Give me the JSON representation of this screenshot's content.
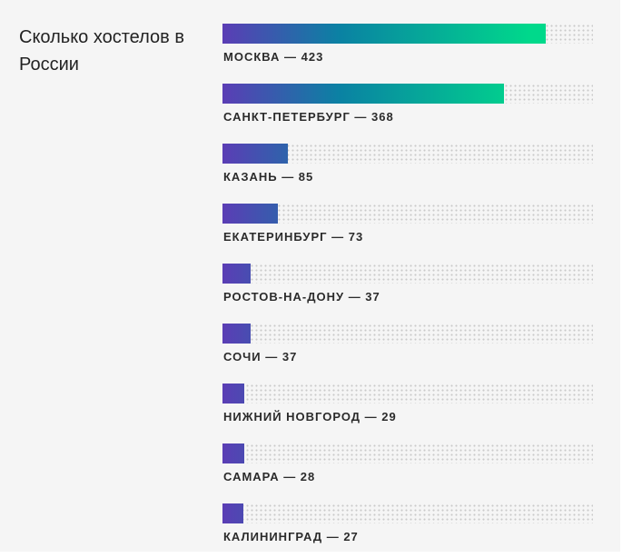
{
  "chart_data": {
    "type": "bar",
    "orientation": "horizontal",
    "title": "Сколько хостелов в России",
    "categories": [
      "МОСКВА",
      "САНКТ-ПЕТЕРБУРГ",
      "КАЗАНЬ",
      "ЕКАТЕРИНБУРГ",
      "РОСТОВ-НА-ДОНУ",
      "СОЧИ",
      "НИЖНИЙ НОВГОРОД",
      "САМАРА",
      "КАЛИНИНГРАД"
    ],
    "values": [
      423,
      368,
      85,
      73,
      37,
      37,
      29,
      28,
      27
    ],
    "labels": [
      "МОСКВА — 423",
      "САНКТ-ПЕТЕРБУРГ — 368",
      "КАЗАНЬ — 85",
      "ЕКАТЕРИНБУРГ — 73",
      "РОСТОВ-НА-ДОНУ — 37",
      "СОЧИ — 37",
      "НИЖНИЙ НОВГОРОД — 29",
      "САМАРА — 28",
      "КАЛИНИНГРАД — 27"
    ],
    "xlim": [
      0,
      485
    ],
    "grid": false,
    "colors": {
      "gradient_start": "#5b3db5",
      "gradient_mid": "#0a82a3",
      "gradient_end": "#00d98b",
      "track_dots": "#c9c9c9",
      "label": "#2b2b2b"
    }
  }
}
